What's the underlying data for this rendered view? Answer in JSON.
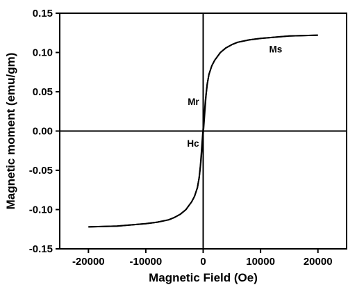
{
  "chart_data": {
    "type": "line",
    "title": "",
    "xlabel": "Magnetic Field (Oe)",
    "ylabel": "Magnetic moment (emu/gm)",
    "xlim": [
      -25000,
      25000
    ],
    "ylim": [
      -0.15,
      0.15
    ],
    "x_ticks": [
      -20000,
      -10000,
      0,
      10000,
      20000
    ],
    "x_tick_labels": [
      "-20000",
      "-10000",
      "0",
      "10000",
      "20000"
    ],
    "y_ticks": [
      -0.15,
      -0.1,
      -0.05,
      0.0,
      0.05,
      0.1,
      0.15
    ],
    "y_tick_labels": [
      "-0.15",
      "-0.10",
      "-0.05",
      "0.00",
      "0.05",
      "0.10",
      "0.15"
    ],
    "grid": false,
    "line_color": "#000000",
    "zero_lines": true,
    "series": [
      {
        "x": [
          20000,
          15000,
          10000,
          8000,
          6000,
          5000,
          4000,
          3000,
          2000,
          1500,
          1000,
          700,
          400,
          200,
          100,
          0,
          -100,
          -200,
          -300,
          -500,
          -700,
          -1000,
          -1500,
          -2000,
          -3000,
          -4000,
          -5000,
          -6000,
          -8000,
          -10000,
          -15000,
          -20000
        ],
        "y": [
          0.122,
          0.121,
          0.118,
          0.116,
          0.113,
          0.11,
          0.106,
          0.1,
          0.09,
          0.083,
          0.072,
          0.06,
          0.04,
          0.022,
          0.012,
          0.004,
          -0.005,
          -0.016,
          -0.026,
          -0.045,
          -0.059,
          -0.072,
          -0.083,
          -0.09,
          -0.1,
          -0.106,
          -0.11,
          -0.113,
          -0.116,
          -0.118,
          -0.121,
          -0.122
        ]
      },
      {
        "x": [
          -20000,
          -15000,
          -10000,
          -8000,
          -6000,
          -5000,
          -4000,
          -3000,
          -2000,
          -1500,
          -1000,
          -700,
          -400,
          -200,
          -100,
          0,
          100,
          200,
          300,
          500,
          700,
          1000,
          1500,
          2000,
          3000,
          4000,
          5000,
          6000,
          8000,
          10000,
          15000,
          20000
        ],
        "y": [
          -0.122,
          -0.121,
          -0.118,
          -0.116,
          -0.113,
          -0.11,
          -0.106,
          -0.1,
          -0.09,
          -0.083,
          -0.072,
          -0.06,
          -0.04,
          -0.022,
          -0.012,
          -0.004,
          0.005,
          0.016,
          0.026,
          0.045,
          0.059,
          0.072,
          0.083,
          0.09,
          0.1,
          0.106,
          0.11,
          0.113,
          0.116,
          0.118,
          0.121,
          0.122
        ]
      }
    ],
    "annotations": [
      {
        "text": "Ms",
        "x": 11500,
        "y": 0.1
      },
      {
        "text": "Mr",
        "x": -2700,
        "y": 0.033
      },
      {
        "text": "Hc",
        "x": -2800,
        "y": -0.02
      }
    ]
  }
}
